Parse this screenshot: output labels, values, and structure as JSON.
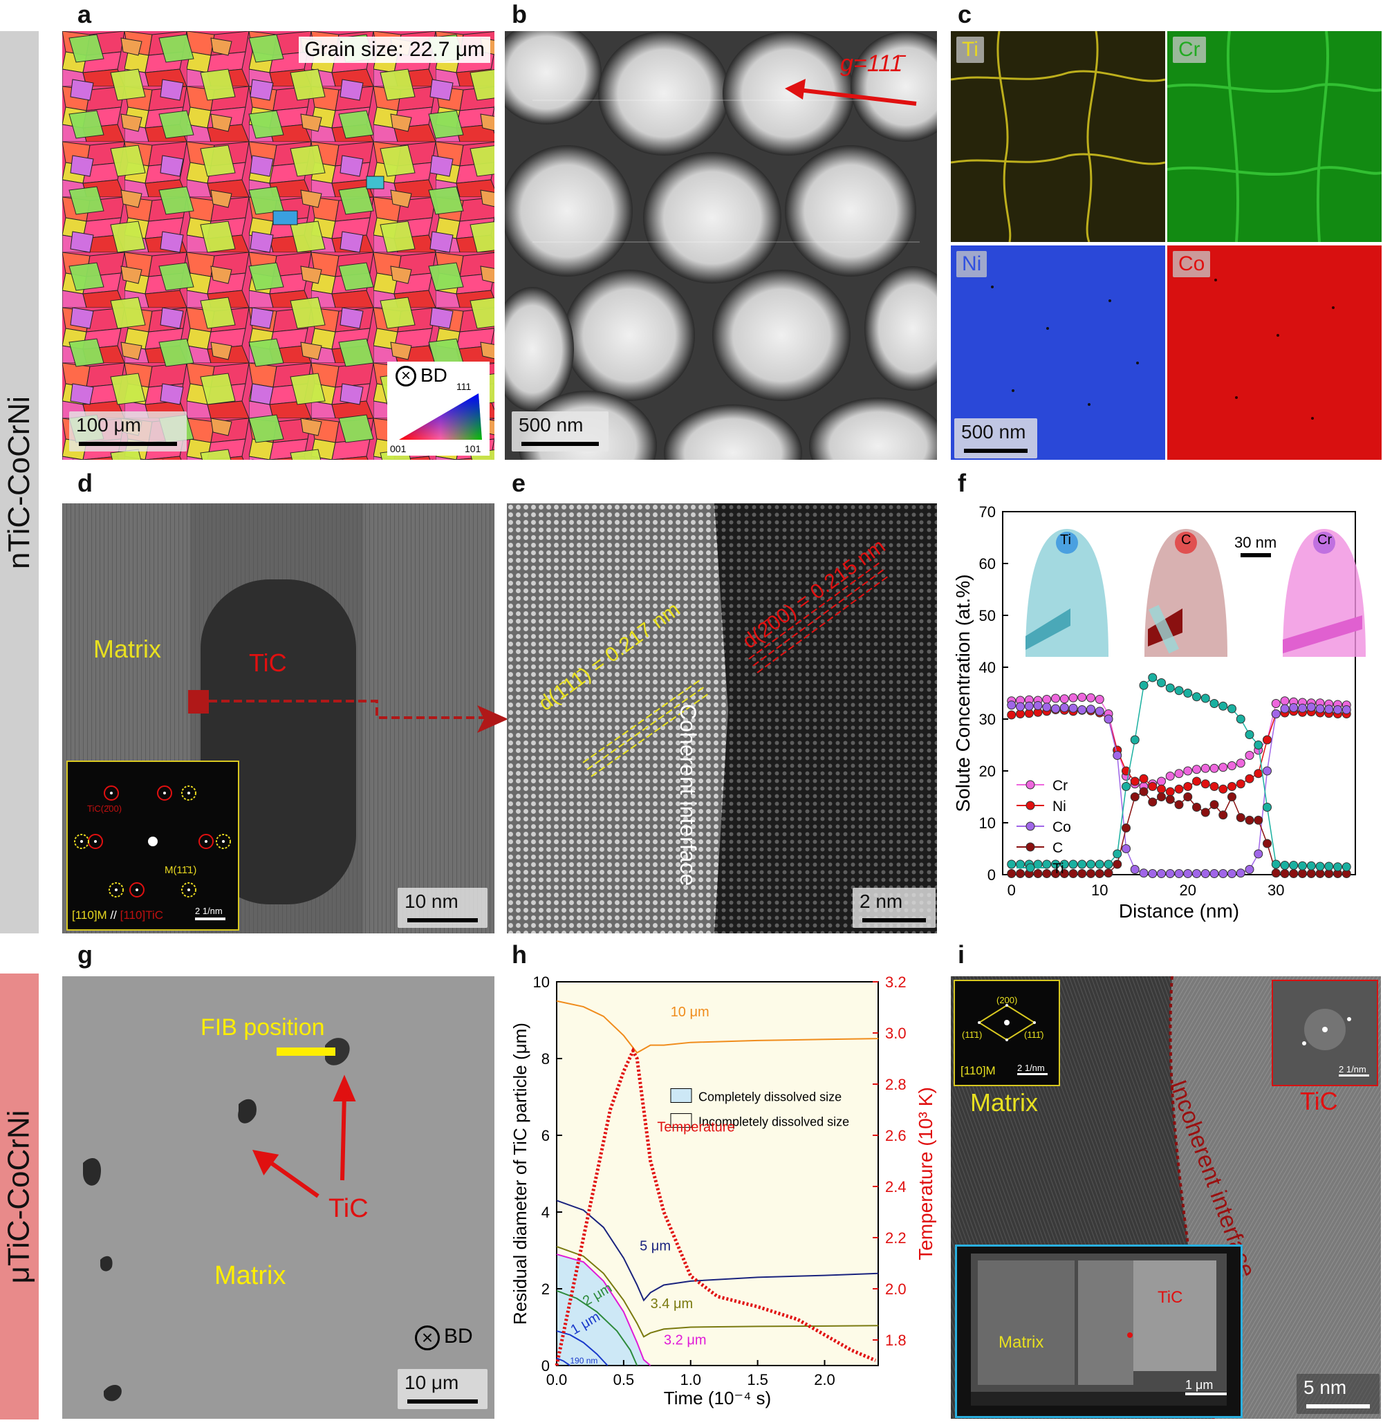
{
  "panel_labels": [
    "a",
    "b",
    "c",
    "d",
    "e",
    "f",
    "g",
    "h",
    "i"
  ],
  "rows": {
    "top_label": "nTiC-CoCrNi",
    "bottom_label": "μTiC-CoCrNi"
  },
  "colors": {
    "top_band": "#cfcfcf",
    "bottom_band": "#e88a8a",
    "red": "#e01010",
    "yellow": "#ffee00"
  },
  "panel_a": {
    "grain_size": "Grain size: 22.7 μm",
    "scale": "100 μm",
    "bd": "BD",
    "ipf_111": "111",
    "ipf_001": "001",
    "ipf_101": "101"
  },
  "panel_b": {
    "g_vector": "g=111̄",
    "scale": "500 nm"
  },
  "panel_c": {
    "elements": [
      "Ti",
      "Cr",
      "Ni",
      "Co"
    ],
    "scale": "500 nm"
  },
  "panel_d": {
    "matrix": "Matrix",
    "tic": "TiC",
    "inset_tic_spot": "TiC(2̄00)",
    "inset_m_spot": "M(11̄1)",
    "inset_zone_m": "[110]M",
    "inset_sep": "//",
    "inset_zone_tic": "[110]TiC",
    "inset_scale": "2 1/nm",
    "scale": "10 nm"
  },
  "panel_e": {
    "d_matrix": "d(1̄11̄) = 0.217 nm",
    "d_tic": "d(2̄00) = 0.215 nm",
    "interface": "Coherent interface",
    "scale": "2 nm"
  },
  "panel_f": {
    "ylabel": "Solute Concentration (at.%)",
    "xlabel": "Distance (nm)",
    "apt_labels": [
      "Ti",
      "C",
      "Cr"
    ],
    "apt_scale": "30 nm"
  },
  "panel_g": {
    "fib": "FIB position",
    "tic": "TiC",
    "matrix": "Matrix",
    "bd": "BD",
    "scale": "10 μm"
  },
  "panel_h": {
    "ylabel_left": "Residual diameter of TiC particle (μm)",
    "ylabel_right": "Temperature (10³ K)",
    "xlabel": "Time (10⁻⁴ s)",
    "legend_complete": "Completely dissolved size",
    "legend_incomplete": "Incompletely dissolved size",
    "temperature_label": "Temperature",
    "annotations": [
      "10 μm",
      "5 μm",
      "3.4 μm",
      "2 μm",
      "1 μm",
      "3.2 μm",
      "190 nm"
    ]
  },
  "panel_i": {
    "matrix": "Matrix",
    "tic": "TiC",
    "interface": "Incoherent interface",
    "fft_zone": "[110]M",
    "fft_200": "(200)",
    "fft_111a": "(11̄1)",
    "fft_111b": "(111̄)",
    "fft_scale": "2 1/nm",
    "fft_scale2": "2 1/nm",
    "inset_matrix": "Matrix",
    "inset_tic": "TiC",
    "inset_scale": "1 μm",
    "scale": "5 nm"
  },
  "chart_data": [
    {
      "type": "line",
      "title": "",
      "xlabel": "Distance (nm)",
      "ylabel": "Solute Concentration (at.%)",
      "xlim": [
        -1,
        39
      ],
      "ylim": [
        0,
        70
      ],
      "xticks": [
        0,
        10,
        20,
        30
      ],
      "yticks": [
        0,
        10,
        20,
        30,
        40,
        50,
        60,
        70
      ],
      "legend_position": "center-left",
      "x": [
        0,
        1,
        2,
        3,
        4,
        5,
        6,
        7,
        8,
        9,
        10,
        11,
        12,
        13,
        14,
        15,
        16,
        17,
        18,
        19,
        20,
        21,
        22,
        23,
        24,
        25,
        26,
        27,
        28,
        29,
        30,
        31,
        32,
        33,
        34,
        35,
        36,
        37,
        38
      ],
      "series": [
        {
          "name": "Cr",
          "color": "#ee66dd",
          "values": [
            33.5,
            33.6,
            33.7,
            33.6,
            33.8,
            34,
            33.9,
            34.1,
            34.2,
            34.1,
            33.8,
            31,
            24,
            19,
            17.5,
            17,
            17.5,
            18,
            19,
            19.5,
            20,
            20.3,
            20.5,
            20.5,
            20.7,
            21,
            21.5,
            23,
            24,
            26,
            33,
            33.5,
            33.3,
            33.2,
            33.1,
            33.1,
            32.9,
            32.8,
            32.7
          ]
        },
        {
          "name": "Ni",
          "color": "#e01010",
          "values": [
            30.8,
            31.0,
            31.1,
            31.3,
            31.5,
            31.8,
            31.7,
            31.5,
            31.7,
            31.6,
            31.2,
            30,
            24,
            20,
            18,
            18.5,
            17,
            16.5,
            16,
            16.5,
            17,
            18,
            17.5,
            17,
            16.5,
            17,
            17.5,
            18.5,
            19.5,
            26,
            31,
            31.2,
            31.5,
            31.3,
            31.4,
            31.2,
            31.1,
            31.0,
            31.0
          ]
        },
        {
          "name": "Co",
          "color": "#a066e8",
          "values": [
            32.7,
            32.4,
            32.5,
            32.6,
            32.3,
            32.0,
            32.2,
            32.1,
            31.8,
            31.9,
            31.5,
            30,
            23,
            5,
            1,
            0.3,
            0.2,
            0.2,
            0.2,
            0.2,
            0.2,
            0.2,
            0.2,
            0.2,
            0.2,
            0.2,
            0.3,
            1,
            4,
            20,
            31,
            32,
            32.2,
            32.1,
            32.3,
            32.0,
            31.9,
            31.8,
            31.8
          ]
        },
        {
          "name": "C",
          "color": "#8a1010",
          "values": [
            0.2,
            0.2,
            0.2,
            0.2,
            0.2,
            0.2,
            0.2,
            0.2,
            0.2,
            0.2,
            0.2,
            0.3,
            2,
            9,
            15,
            16,
            14,
            15,
            14.5,
            13.5,
            15,
            13,
            12,
            13.5,
            11.5,
            15,
            11,
            10.5,
            10.5,
            6,
            0.3,
            0.2,
            0.2,
            0.2,
            0.2,
            0.2,
            0.2,
            0.2,
            0.2
          ]
        },
        {
          "name": "Ti",
          "color": "#1ab0a0",
          "values": [
            2,
            2,
            2,
            2,
            2,
            2,
            2,
            2,
            2,
            2,
            2,
            2,
            4,
            17,
            26,
            36.5,
            38,
            37,
            36,
            35.5,
            35,
            34.3,
            34,
            33,
            32.5,
            32,
            30,
            27,
            25,
            13,
            2,
            1.8,
            1.8,
            1.7,
            1.7,
            1.6,
            1.6,
            1.5,
            1.5
          ]
        }
      ]
    },
    {
      "type": "line",
      "title": "",
      "xlabel": "Time (10⁻⁴ s)",
      "ylabel": "Residual diameter of TiC particle (μm)",
      "ylabel_right": "Temperature (10³ K)",
      "xlim": [
        0,
        2.4
      ],
      "ylim": [
        0,
        10
      ],
      "ylim_right": [
        1.7,
        3.2
      ],
      "xticks": [
        0.0,
        0.5,
        1.0,
        1.5,
        2.0
      ],
      "yticks": [
        0,
        2,
        4,
        6,
        8,
        10
      ],
      "yticks_right": [
        1.8,
        2.0,
        2.2,
        2.4,
        2.6,
        2.8,
        3.0,
        3.2
      ],
      "legend_position": "center-right",
      "series": [
        {
          "name": "10 μm",
          "color": "#f08c1c",
          "x": [
            0,
            0.2,
            0.35,
            0.5,
            0.6,
            0.7,
            0.8,
            1.0,
            1.5,
            2.0,
            2.4
          ],
          "values": [
            9.5,
            9.35,
            9.1,
            8.6,
            8.15,
            8.35,
            8.35,
            8.42,
            8.47,
            8.5,
            8.52
          ]
        },
        {
          "name": "5 μm",
          "color": "#1a237e",
          "x": [
            0,
            0.2,
            0.35,
            0.5,
            0.6,
            0.65,
            0.7,
            0.8,
            1.0,
            1.5,
            2.0,
            2.4
          ],
          "values": [
            4.3,
            4.05,
            3.6,
            2.8,
            2.1,
            1.7,
            1.9,
            2.1,
            2.2,
            2.3,
            2.35,
            2.4
          ]
        },
        {
          "name": "3.4 μm",
          "color": "#7a7a10",
          "x": [
            0,
            0.2,
            0.35,
            0.5,
            0.6,
            0.65,
            0.7,
            0.8,
            1.0,
            1.5,
            2.0,
            2.4
          ],
          "values": [
            3.1,
            2.85,
            2.4,
            1.7,
            1.1,
            0.75,
            0.85,
            0.95,
            1.0,
            1.02,
            1.03,
            1.04
          ]
        },
        {
          "name": "3.2 μm",
          "color": "#e01ad8",
          "x": [
            0,
            0.2,
            0.35,
            0.5,
            0.6,
            0.65,
            0.7
          ],
          "values": [
            2.9,
            2.7,
            2.2,
            1.4,
            0.6,
            0.15,
            0
          ]
        },
        {
          "name": "2 μm",
          "color": "#2e8b3c",
          "x": [
            0,
            0.15,
            0.3,
            0.45,
            0.55,
            0.6
          ],
          "values": [
            1.95,
            1.75,
            1.4,
            0.9,
            0.4,
            0
          ]
        },
        {
          "name": "1 μm",
          "color": "#1a3acb",
          "x": [
            0,
            0.1,
            0.2,
            0.3,
            0.38
          ],
          "values": [
            0.9,
            0.8,
            0.6,
            0.3,
            0
          ]
        },
        {
          "name": "190 nm",
          "color": "#1a3acb",
          "x": [
            0,
            0.05,
            0.1
          ],
          "values": [
            0.19,
            0.12,
            0
          ]
        },
        {
          "name": "Temperature",
          "color": "#e01010",
          "axis": "right",
          "x": [
            0,
            0.1,
            0.2,
            0.3,
            0.4,
            0.5,
            0.57,
            0.6,
            0.65,
            0.7,
            0.8,
            1.0,
            1.2,
            1.5,
            1.8,
            2.0,
            2.2,
            2.38
          ],
          "values": [
            1.7,
            1.95,
            2.2,
            2.45,
            2.7,
            2.85,
            2.93,
            2.9,
            2.7,
            2.5,
            2.3,
            2.05,
            1.97,
            1.93,
            1.88,
            1.82,
            1.76,
            1.72
          ]
        }
      ]
    }
  ]
}
